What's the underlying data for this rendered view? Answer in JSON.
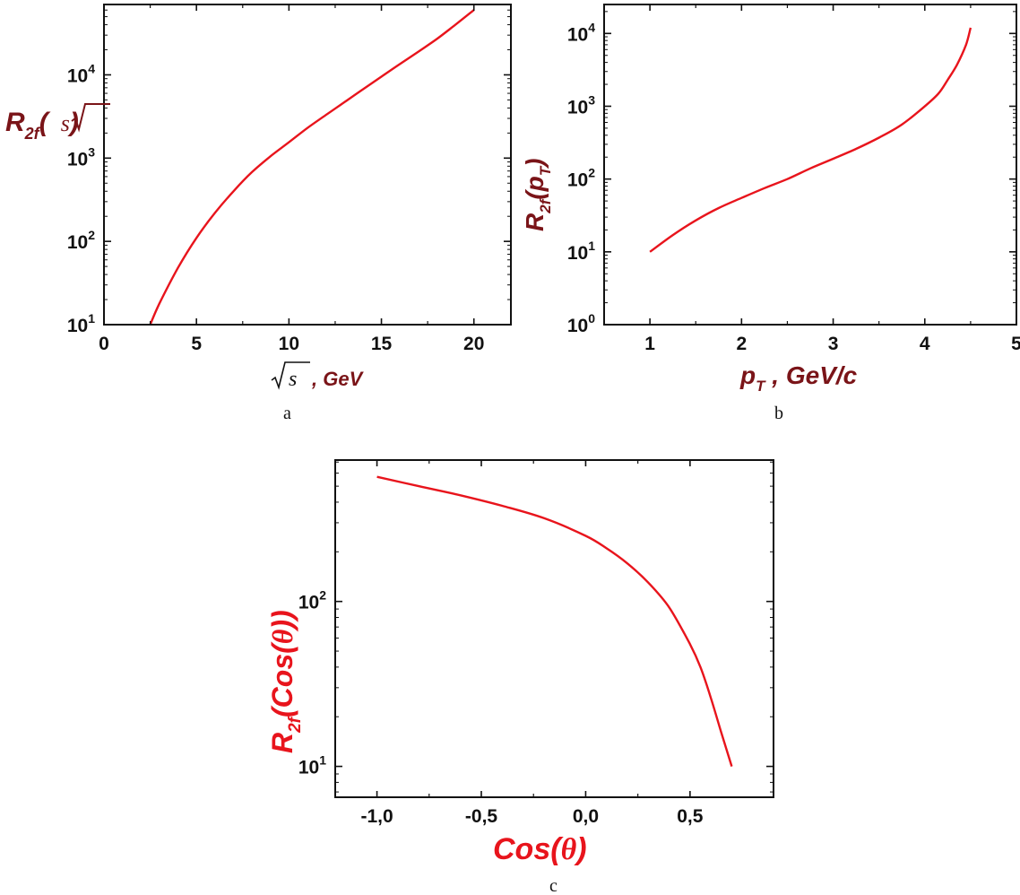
{
  "chart_data": [
    {
      "type": "line",
      "panel_label": "a",
      "xlabel": ", GeV",
      "xlabel_symbol": "s",
      "ylabel": "R",
      "ylabel_sub": "2f",
      "ylabel_arg": "s",
      "ylabel_open": "(",
      "ylabel_close": ")",
      "xlim": [
        0,
        22
      ],
      "ylim": [
        10,
        70000
      ],
      "yscale": "log",
      "grid": false,
      "x_ticks": [
        0,
        5,
        10,
        15,
        20
      ],
      "x_tick_labels": [
        "0",
        "5",
        "10",
        "15",
        "20"
      ],
      "y_ticks": [
        10,
        100,
        1000,
        10000
      ],
      "y_tick_bases": [
        "10",
        "10",
        "10",
        "10"
      ],
      "y_tick_exps": [
        "1",
        "2",
        "3",
        "4"
      ],
      "line_color": "#e8141c",
      "label_color": "#7a1418",
      "series": [
        {
          "x": [
            2.5,
            3,
            4,
            5,
            6,
            7,
            8,
            9,
            10,
            11,
            12,
            13,
            14,
            15,
            16,
            17,
            18,
            19,
            20
          ],
          "y": [
            10,
            18,
            48,
            110,
            220,
            400,
            680,
            1050,
            1550,
            2300,
            3300,
            4700,
            6700,
            9500,
            13500,
            19000,
            27000,
            40000,
            60000
          ]
        }
      ]
    },
    {
      "type": "line",
      "panel_label": "b",
      "xlabel": "p",
      "xlabel_sub": "T",
      "xlabel_unit": " , GeV/c",
      "ylabel": "R",
      "ylabel_sub": "2f",
      "ylabel_open": "(p",
      "ylabel_sub2": "T",
      "ylabel_close": ")",
      "xlim": [
        0.5,
        5
      ],
      "ylim": [
        1,
        25000
      ],
      "yscale": "log",
      "grid": false,
      "x_ticks": [
        1,
        2,
        3,
        4,
        5
      ],
      "x_tick_labels": [
        "1",
        "2",
        "3",
        "4",
        "5"
      ],
      "y_ticks": [
        1,
        10,
        100,
        1000,
        10000
      ],
      "y_tick_bases": [
        "10",
        "10",
        "10",
        "10",
        "10"
      ],
      "y_tick_exps": [
        "0",
        "1",
        "2",
        "3",
        "4"
      ],
      "line_color": "#e8141c",
      "label_color": "#7a1418",
      "series": [
        {
          "x": [
            1.0,
            1.25,
            1.5,
            1.75,
            2.0,
            2.25,
            2.5,
            2.75,
            3.0,
            3.25,
            3.5,
            3.75,
            4.0,
            4.15,
            4.25,
            4.35,
            4.45,
            4.5
          ],
          "y": [
            10,
            17,
            27,
            40,
            55,
            75,
            100,
            140,
            190,
            260,
            370,
            560,
            1000,
            1500,
            2300,
            3700,
            7000,
            12000
          ]
        }
      ]
    },
    {
      "type": "line",
      "panel_label": "c",
      "xlabel": "Cos(",
      "xlabel_theta": "θ",
      "xlabel_close": ")",
      "ylabel": "R",
      "ylabel_sub": "2f",
      "ylabel_open": "(Cos(",
      "ylabel_theta": "θ",
      "ylabel_close": "))",
      "xlim": [
        -1.2,
        0.9
      ],
      "ylim": [
        6.5,
        720
      ],
      "yscale": "log",
      "grid": false,
      "x_ticks": [
        -1.0,
        -0.5,
        0.0,
        0.5
      ],
      "x_tick_labels": [
        "-1,0",
        "-0,5",
        "0,0",
        "0,5"
      ],
      "y_ticks": [
        10,
        100
      ],
      "y_tick_bases": [
        "10",
        "10"
      ],
      "y_tick_exps": [
        "1",
        "2"
      ],
      "line_color": "#e8141c",
      "label_color": "#e8141c",
      "series": [
        {
          "x": [
            -1.0,
            -0.8,
            -0.6,
            -0.4,
            -0.2,
            0.0,
            0.1,
            0.2,
            0.3,
            0.4,
            0.5,
            0.55,
            0.6,
            0.65,
            0.7
          ],
          "y": [
            570,
            500,
            440,
            380,
            320,
            250,
            210,
            170,
            130,
            92,
            55,
            40,
            26,
            16,
            10
          ]
        }
      ]
    }
  ]
}
